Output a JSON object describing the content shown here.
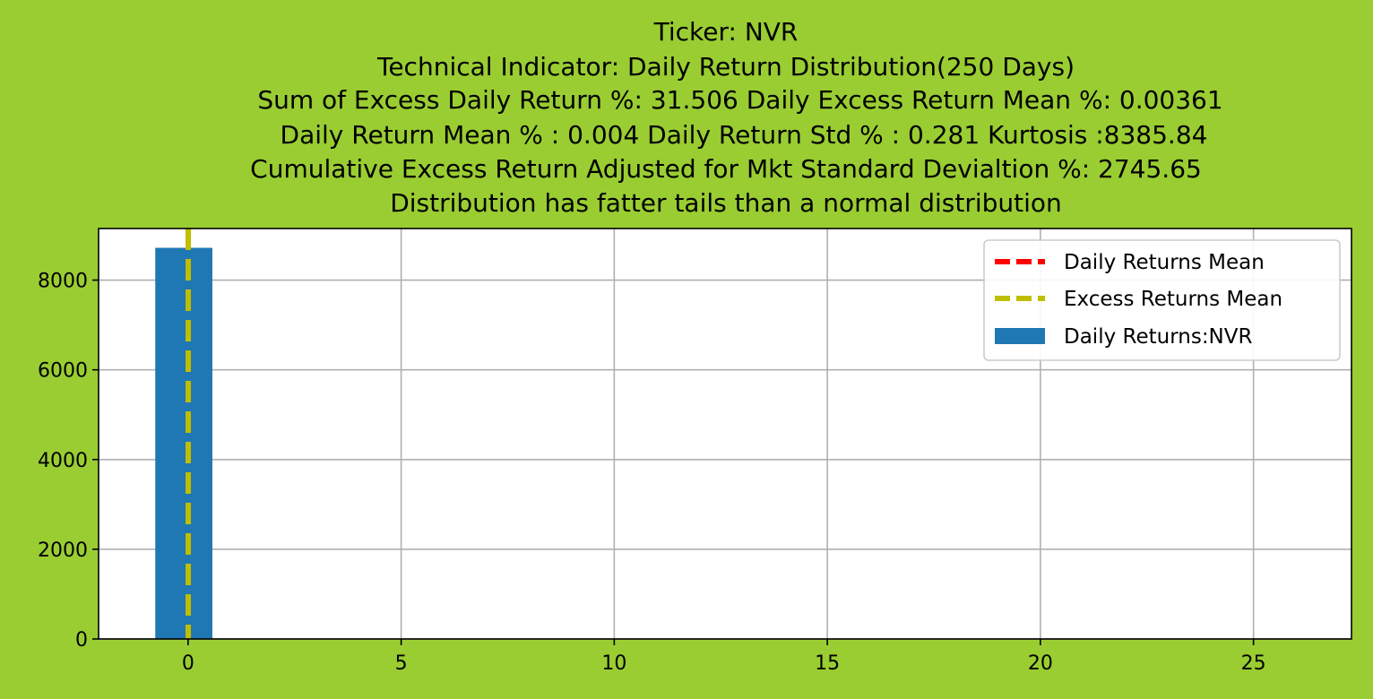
{
  "page": {
    "background": "#9acd32"
  },
  "chart_data": {
    "type": "bar",
    "title_lines": [
      "Ticker: NVR",
      "Technical Indicator: Daily Return Distribution(250 Days)",
      "Sum of Excess Daily Return %: 31.506   Daily Excess Return Mean %: 0.00361",
      "Daily Return Mean % : 0.004    Daily Return Std % : 0.281  Kurtosis :8385.84",
      "Cumulative Excess Return Adjusted for Mkt Standard Devialtion %: 2745.65",
      "Distribution has fatter tails than a normal distribution"
    ],
    "xlabel": "",
    "ylabel": "",
    "xlim": [
      -2.1,
      27.3
    ],
    "ylim": [
      0,
      9150
    ],
    "xticks": [
      0,
      5,
      10,
      15,
      20,
      25
    ],
    "yticks": [
      0,
      2000,
      4000,
      6000,
      8000
    ],
    "grid": true,
    "legend_position": "top-right",
    "histogram": {
      "name": "Daily Returns:NVR",
      "color": "#1f77b4",
      "bins": [
        {
          "x0": -0.77,
          "x1": 0.57,
          "count": 8720
        }
      ]
    },
    "vlines": [
      {
        "name": "Daily Returns Mean",
        "x": 0.004,
        "color": "#ff0000",
        "style": "dashed"
      },
      {
        "name": "Excess Returns Mean",
        "x": 0.00361,
        "color": "#bfbf00",
        "style": "dashed"
      }
    ],
    "legend": [
      {
        "label": "Daily Returns Mean",
        "kind": "line",
        "color": "#ff0000"
      },
      {
        "label": "Excess Returns Mean",
        "kind": "line",
        "color": "#bfbf00"
      },
      {
        "label": "Daily Returns:NVR",
        "kind": "patch",
        "color": "#1f77b4"
      }
    ]
  }
}
